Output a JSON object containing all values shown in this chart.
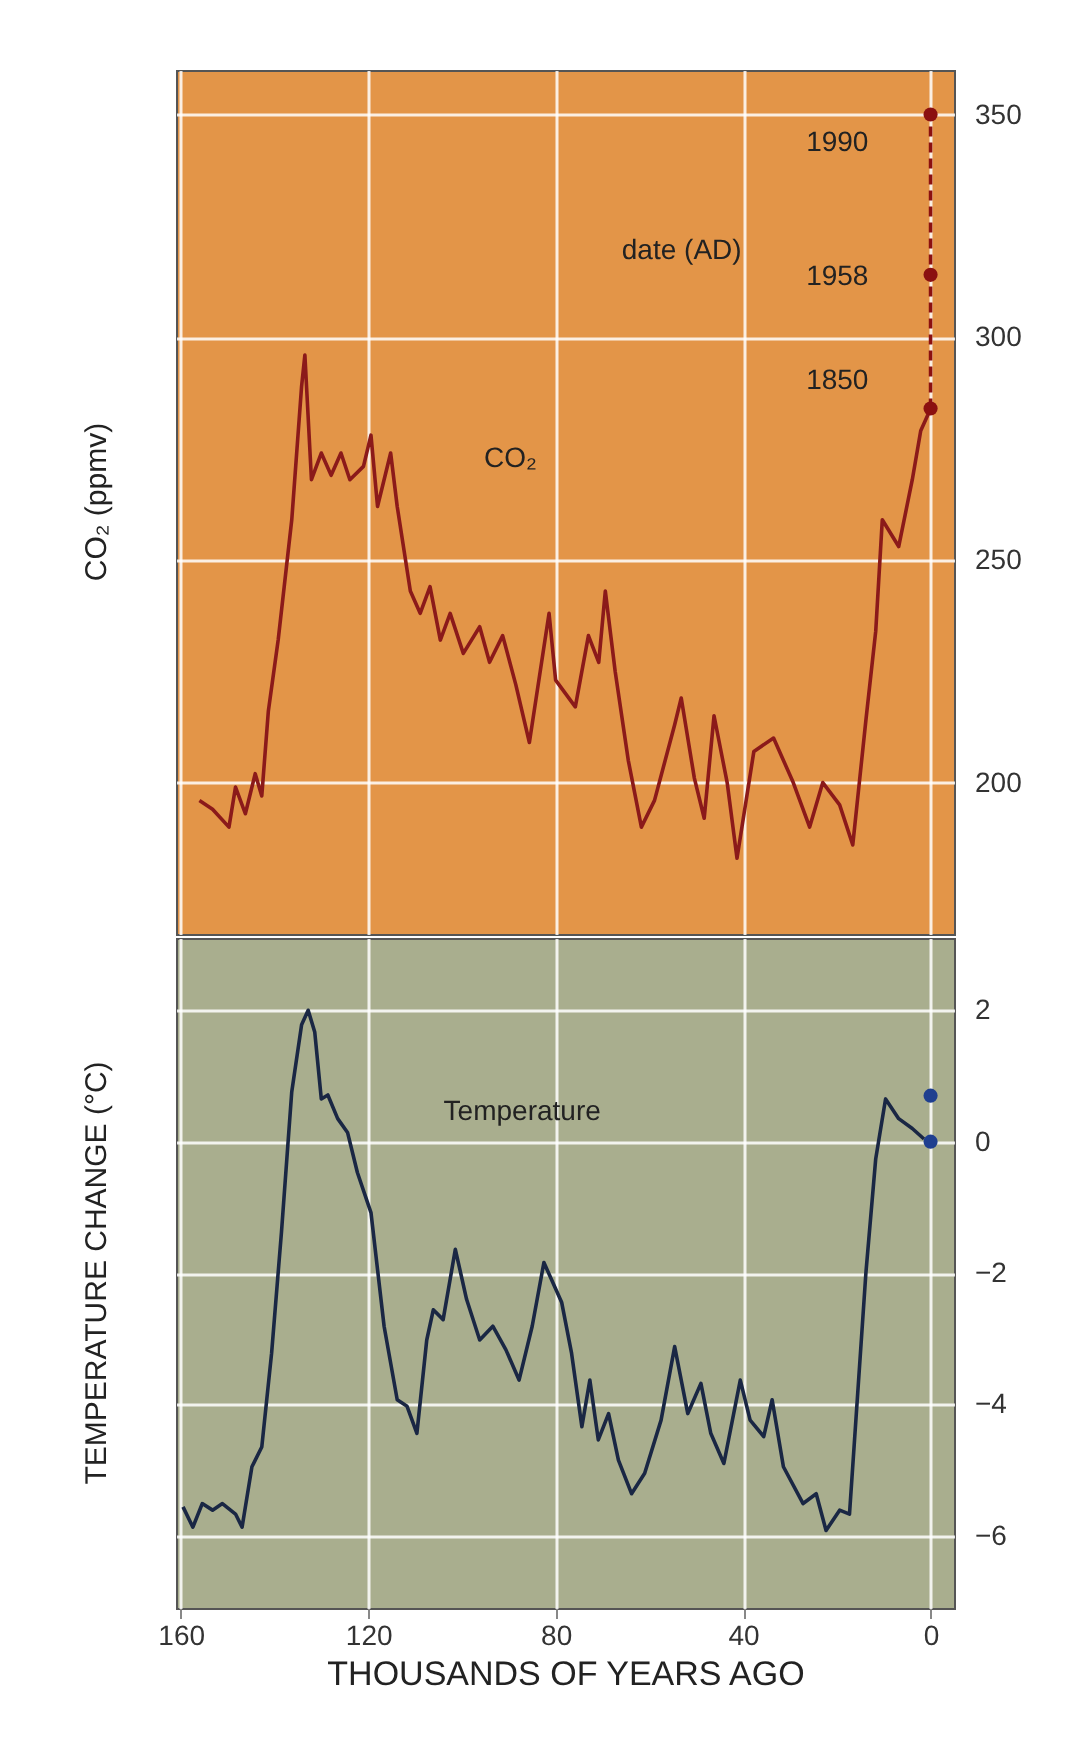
{
  "chart_data": [
    {
      "type": "line",
      "ylabel": "CO₂ (ppmv)",
      "xlim": [
        161,
        -5
      ],
      "xticks": [
        160,
        120,
        80,
        40,
        0
      ],
      "ylim": [
        166,
        360
      ],
      "yticks": [
        200,
        250,
        300,
        350
      ],
      "grid": true,
      "tick_labels": "y",
      "series": [
        {
          "color": "#8b1a1a",
          "line_style": "solid",
          "x": [
            156,
            153.2,
            149.7,
            148.3,
            146.2,
            144.1,
            142.7,
            141.3,
            139.2,
            136.3,
            134.2,
            133.5,
            132.1,
            130,
            127.9,
            125.8,
            123.9,
            121,
            119.4,
            118,
            115.2,
            113.8,
            111,
            108.9,
            106.8,
            104.6,
            102.5,
            99.7,
            96.2,
            94.1,
            91.3,
            88.5,
            85.6,
            81.4,
            80,
            75.8,
            73,
            70.8,
            69.4,
            67.3,
            64.5,
            61.7,
            58.9,
            54.6,
            53.2,
            50.4,
            48.3,
            46.2,
            43.4,
            41.3,
            37.7,
            33.5,
            29.3,
            25.8,
            23,
            19.4,
            16.6,
            13.8,
            11.7,
            10.3,
            6.8,
            3.9,
            2.1,
            0.4
          ],
          "values": [
            196,
            194,
            190,
            199,
            193,
            202,
            197,
            216,
            232,
            259,
            289,
            296,
            268,
            274,
            269,
            274,
            268,
            271,
            278,
            262,
            274,
            262,
            243,
            238,
            244,
            232,
            238,
            229,
            235,
            227,
            233,
            222,
            209,
            238,
            223,
            217,
            233,
            227,
            243,
            225,
            205,
            190,
            196,
            213,
            219,
            201,
            192,
            215,
            200,
            183,
            207,
            210,
            200,
            190,
            200,
            195,
            186,
            214,
            234,
            259,
            253,
            268,
            279,
            283
          ]
        },
        {
          "color": "#8b1010",
          "type": "line",
          "marker": "circle",
          "line_style": "dashed",
          "x": [
            0,
            0,
            0
          ],
          "values": [
            284,
            314,
            350
          ]
        }
      ],
      "annotations": [
        "1990",
        "1958",
        "1850",
        "date (AD)",
        "CO₂"
      ]
    },
    {
      "type": "line",
      "xlabel": "THOUSANDS OF YEARS AGO",
      "ylabel": "TEMPERATURE CHANGE (°C)",
      "xlim": [
        161,
        -5
      ],
      "xticks": [
        160,
        120,
        80,
        40,
        0
      ],
      "ylim": [
        -7.1,
        3.1
      ],
      "yticks": [
        2,
        0,
        -2,
        -4,
        -6
      ],
      "grid": true,
      "series": [
        {
          "color": "#1a2744",
          "line_style": "solid",
          "x": [
            159.5,
            157.4,
            155.4,
            153.2,
            151.1,
            148.3,
            146.9,
            144.8,
            142.7,
            140.6,
            138.5,
            136.3,
            134.2,
            132.8,
            131.4,
            130,
            128.6,
            126.5,
            124.4,
            122.3,
            119.4,
            116.6,
            113.8,
            111.7,
            109.6,
            107.5,
            106.1,
            104,
            101.4,
            99,
            96.2,
            93.4,
            90.6,
            87.8,
            85,
            82.5,
            78.7,
            76.6,
            74.4,
            72.7,
            70.9,
            68.7,
            66.6,
            63.8,
            61,
            57.5,
            54.6,
            51.8,
            49,
            46.9,
            44.1,
            40.6,
            38.5,
            35.6,
            33.8,
            31.4,
            27.2,
            24.4,
            22.3,
            19.4,
            17.3,
            13.8,
            11.7,
            9.6,
            6.8,
            3.9,
            1.4
          ],
          "values": [
            -5.56,
            -5.87,
            -5.51,
            -5.61,
            -5.51,
            -5.67,
            -5.87,
            -4.95,
            -4.65,
            -3.22,
            -1.38,
            0.76,
            1.78,
            2.0,
            1.67,
            0.65,
            0.71,
            0.35,
            0.14,
            -0.47,
            -1.08,
            -2.81,
            -3.93,
            -4.03,
            -4.44,
            -3.02,
            -2.56,
            -2.71,
            -1.64,
            -2.4,
            -3.02,
            -2.81,
            -3.17,
            -3.63,
            -2.81,
            -1.84,
            -2.45,
            -3.22,
            -4.34,
            -3.63,
            -4.54,
            -4.14,
            -4.85,
            -5.36,
            -5.05,
            -4.24,
            -3.12,
            -4.14,
            -3.68,
            -4.44,
            -4.9,
            -3.63,
            -4.24,
            -4.49,
            -3.93,
            -4.95,
            -5.51,
            -5.36,
            -5.92,
            -5.61,
            -5.67,
            -2.0,
            -0.26,
            0.65,
            0.35,
            0.2,
            0.04
          ]
        },
        {
          "color": "#1f3f8f",
          "type": "scatter",
          "marker": "circle",
          "x": [
            0,
            0
          ],
          "values": [
            0.7,
            0
          ]
        }
      ],
      "annotations": [
        "Temperature"
      ]
    }
  ]
}
